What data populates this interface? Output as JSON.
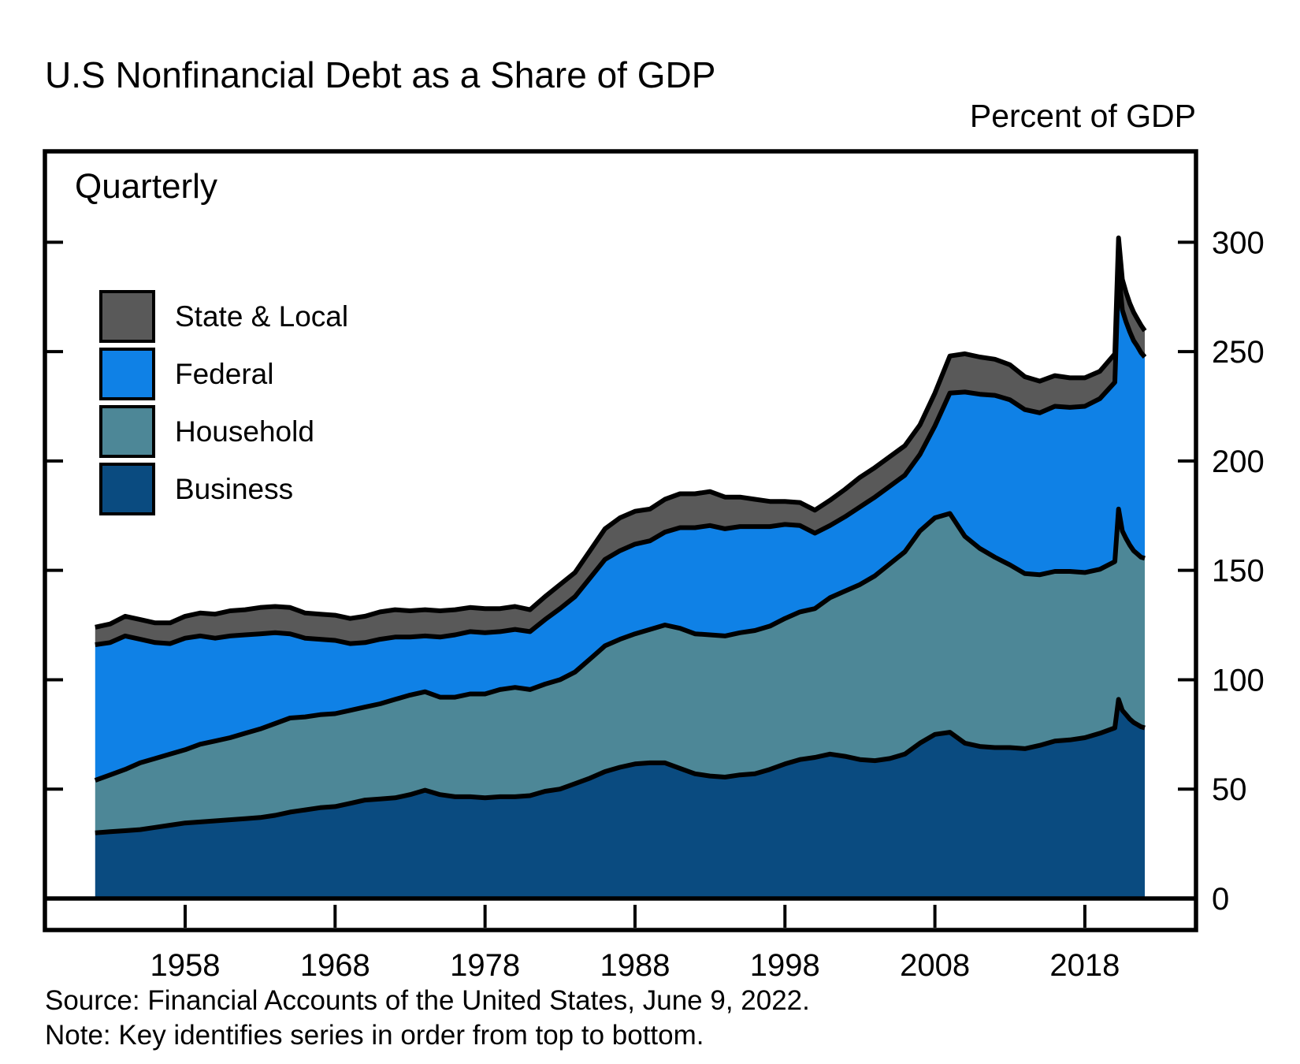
{
  "header": {
    "title": "U.S Nonfinancial Debt as a Share of GDP",
    "axis_unit_label": "Percent of GDP"
  },
  "plot": {
    "frequency_label": "Quarterly"
  },
  "legend": {
    "items": [
      {
        "label": "State & Local",
        "color": "#595959"
      },
      {
        "label": "Federal",
        "color": "#0f81e6"
      },
      {
        "label": "Household",
        "color": "#4d8797"
      },
      {
        "label": "Business",
        "color": "#0a4b80"
      }
    ]
  },
  "footer": {
    "source": "Source: Financial Accounts of the United States, June 9, 2022.",
    "note": "Note: Key identifies series in order from top to bottom."
  },
  "chart_data": {
    "type": "area",
    "stacked": true,
    "title": "U.S Nonfinancial Debt as a Share of GDP",
    "ylabel": "Percent of GDP",
    "frequency": "Quarterly",
    "legend_position": "upper-left",
    "grid": false,
    "outline_color": "#000000",
    "x_axis": {
      "ticks": [
        1958,
        1968,
        1978,
        1988,
        1998,
        2008,
        2018
      ],
      "range": [
        1952,
        2022.3
      ]
    },
    "y_axis": {
      "ticks": [
        0,
        50,
        100,
        150,
        200,
        250,
        300
      ],
      "range": [
        0,
        341
      ],
      "unit": "percent of GDP"
    },
    "stack_order_bottom_to_top": [
      "Business",
      "Household",
      "Federal",
      "State & Local"
    ],
    "x": [
      1952,
      1953,
      1954,
      1955,
      1956,
      1957,
      1958,
      1959,
      1960,
      1961,
      1962,
      1963,
      1964,
      1965,
      1966,
      1967,
      1968,
      1969,
      1970,
      1971,
      1972,
      1973,
      1974,
      1975,
      1976,
      1977,
      1978,
      1979,
      1980,
      1981,
      1982,
      1983,
      1984,
      1985,
      1986,
      1987,
      1988,
      1989,
      1990,
      1991,
      1992,
      1993,
      1994,
      1995,
      1996,
      1997,
      1998,
      1999,
      2000,
      2001,
      2002,
      2003,
      2004,
      2005,
      2006,
      2007,
      2008,
      2009,
      2010,
      2011,
      2012,
      2013,
      2014,
      2015,
      2016,
      2017,
      2018,
      2019,
      2020,
      2020.25,
      2020.5,
      2020.75,
      2021,
      2021.25,
      2021.5,
      2021.75,
      2022
    ],
    "series": [
      {
        "name": "Business",
        "key": "business",
        "color": "#0a4b80",
        "values": [
          30,
          30.5,
          31,
          31.5,
          32.5,
          33.5,
          34.5,
          35,
          35.5,
          36,
          36.5,
          37,
          38,
          39.5,
          40.5,
          41.5,
          42,
          43.5,
          45,
          45.5,
          46,
          47.5,
          49.5,
          47.5,
          46.5,
          46.5,
          46,
          46.5,
          46.5,
          47,
          49,
          50,
          52.5,
          55,
          58,
          60,
          61.5,
          62,
          62,
          59.5,
          57,
          56,
          55.5,
          56.5,
          57,
          59,
          61.5,
          63.5,
          64.5,
          66,
          65,
          63.5,
          63,
          64,
          66,
          71,
          75,
          76,
          71,
          69.5,
          69,
          69,
          68.5,
          70,
          72,
          72.5,
          73.5,
          75.5,
          78,
          91,
          86,
          84,
          82,
          80.5,
          79.5,
          78.5,
          78
        ]
      },
      {
        "name": "Household",
        "key": "household",
        "color": "#4d8797",
        "values": [
          24,
          26,
          28,
          30.5,
          31.5,
          32.5,
          33.5,
          35.5,
          36.5,
          37.5,
          39,
          40.5,
          42,
          43,
          42.5,
          42.5,
          42.5,
          42.5,
          42.5,
          43.5,
          45,
          45.5,
          45,
          44.5,
          45.5,
          47,
          47.5,
          49,
          50,
          48.5,
          49,
          50,
          51,
          54.5,
          57.5,
          58.5,
          59.5,
          61,
          63,
          64,
          64,
          64.5,
          64.5,
          65,
          65.5,
          65.5,
          66.5,
          67.5,
          68,
          71.5,
          75.5,
          80,
          84.5,
          89,
          92.5,
          97,
          99,
          100,
          94.5,
          90.5,
          87,
          83.5,
          80,
          78,
          77.5,
          77,
          75.5,
          75,
          76,
          87,
          82,
          80.5,
          79.5,
          78.5,
          78,
          77.5,
          77.5
        ]
      },
      {
        "name": "Federal",
        "key": "federal",
        "color": "#0f81e6",
        "values": [
          62,
          60.5,
          61,
          56.5,
          53,
          50.5,
          51,
          49.5,
          47,
          46.5,
          45,
          43.5,
          41.5,
          38.5,
          36,
          34.5,
          33.5,
          30.5,
          29.5,
          29.5,
          28.5,
          26.5,
          25.5,
          27.5,
          28.5,
          28.5,
          28,
          26.5,
          26.5,
          26.5,
          29.5,
          32.5,
          34.5,
          37,
          39.5,
          40.5,
          41,
          40.5,
          42.5,
          46,
          48.5,
          50,
          49,
          48.5,
          47.5,
          45.5,
          43,
          39.5,
          34.5,
          33,
          34,
          35.5,
          36,
          35.5,
          35,
          35,
          42,
          55,
          66,
          70.5,
          74,
          75.5,
          75,
          74,
          75.5,
          75,
          76,
          78,
          82,
          109,
          101,
          99,
          97.5,
          96,
          95,
          93.5,
          92
        ]
      },
      {
        "name": "State & Local",
        "key": "state_local",
        "color": "#595959",
        "values": [
          8,
          8.5,
          9,
          9,
          9,
          9.5,
          10,
          10.5,
          11,
          11.5,
          11.5,
          12,
          12,
          12,
          11.5,
          11.5,
          11.5,
          11.5,
          12,
          12.5,
          12.5,
          12,
          12,
          12,
          11.5,
          11,
          11,
          10.5,
          10.5,
          10,
          10.5,
          11,
          11,
          12.5,
          14,
          15,
          15,
          14.5,
          15,
          15.5,
          15.5,
          15.5,
          14.5,
          13.5,
          12.5,
          11.5,
          10.5,
          10.5,
          10.5,
          11.5,
          12.5,
          13.5,
          13.5,
          13.5,
          13.5,
          13.5,
          15,
          17,
          17.5,
          17,
          16.5,
          16,
          15,
          14.5,
          14,
          13.5,
          13,
          12.5,
          13,
          15,
          14,
          13.5,
          13,
          13,
          12.5,
          12.5,
          12
        ]
      }
    ]
  }
}
